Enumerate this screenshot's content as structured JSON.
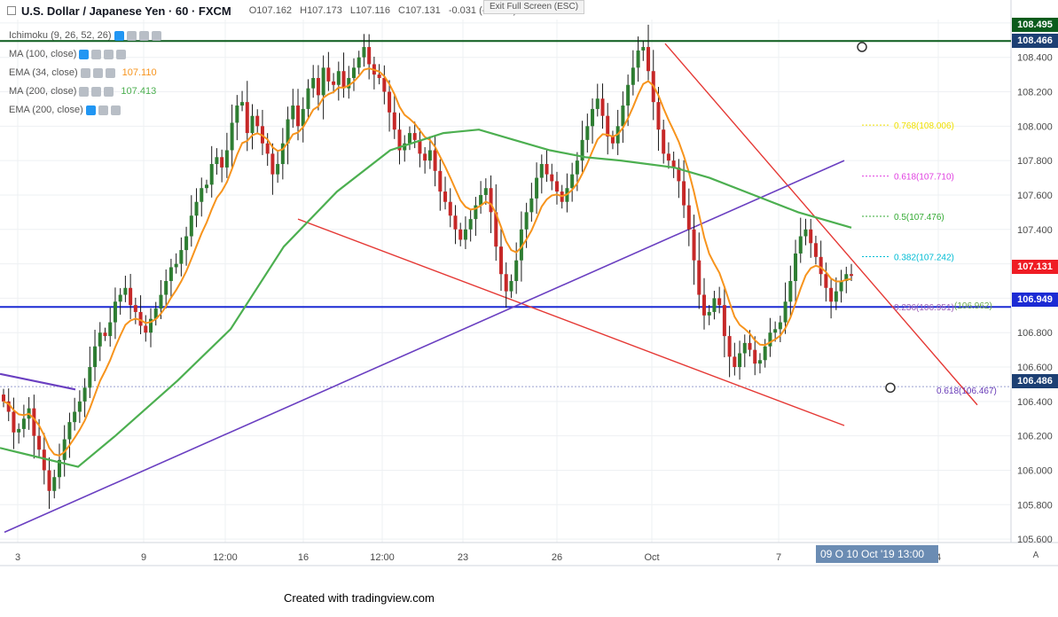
{
  "header": {
    "symbol": "U.S. Dollar / Japanese Yen · 60 · FXCM",
    "open": "O107.162",
    "high": "H107.173",
    "low": "L107.116",
    "close": "C107.131",
    "change": "-0.031 (-0.03%)",
    "exit_fullscreen": "Exit Full Screen (ESC)"
  },
  "indicators": [
    {
      "label": "Ichimoku (9, 26, 52, 26)",
      "value": "",
      "color": "#8a8a8a"
    },
    {
      "label": "MA (100, close)",
      "value": "",
      "color": "#8a8a8a"
    },
    {
      "label": "EMA (34, close)",
      "value": "107.110",
      "color": "#f7941d"
    },
    {
      "label": "MA (200, close)",
      "value": "107.413",
      "color": "#4caf50"
    },
    {
      "label": "EMA (200, close)",
      "value": "",
      "color": "#8a8a8a"
    }
  ],
  "price_labels": [
    {
      "text": "108.495",
      "bg": "#0b5b1c"
    },
    {
      "text": "108.466",
      "bg": "#1c3f73"
    },
    {
      "text": "107.131",
      "bg": "#ef1c24"
    },
    {
      "text": "106.949",
      "bg": "#1c2bd4"
    },
    {
      "text": "106.486",
      "bg": "#1c3f73"
    }
  ],
  "footer": "Created with tradingview.com",
  "time_highlight": "09 O   10 Oct '19   13:00",
  "auto_button": "A",
  "chart_data": {
    "type": "candlestick",
    "x_tick_labels": [
      "3",
      "9",
      "12:00",
      "16",
      "12:00",
      "23",
      "26",
      "Oct",
      "7",
      "4"
    ],
    "y_tick_labels": [
      "108.600",
      "108.400",
      "108.200",
      "108.000",
      "107.800",
      "107.600",
      "107.400",
      "107.200",
      "107.000",
      "106.800",
      "106.600",
      "106.400",
      "106.200",
      "106.000",
      "105.800",
      "105.600"
    ],
    "ylim": [
      105.58,
      108.62
    ],
    "close_series": [
      106.4,
      106.34,
      106.22,
      106.24,
      106.3,
      106.36,
      106.2,
      106.12,
      106.0,
      105.88,
      105.96,
      106.06,
      106.18,
      106.28,
      106.34,
      106.4,
      106.48,
      106.6,
      106.72,
      106.8,
      106.78,
      106.86,
      106.98,
      107.02,
      107.06,
      106.96,
      106.92,
      106.84,
      106.8,
      106.88,
      106.94,
      107.02,
      107.1,
      107.18,
      107.2,
      107.28,
      107.36,
      107.48,
      107.56,
      107.64,
      107.66,
      107.78,
      107.82,
      107.76,
      107.86,
      108.02,
      108.12,
      108.14,
      107.96,
      108.06,
      108.0,
      107.9,
      107.84,
      107.72,
      107.78,
      107.9,
      108.04,
      108.12,
      108.0,
      108.1,
      108.22,
      108.28,
      108.18,
      108.34,
      108.26,
      108.24,
      108.32,
      108.22,
      108.28,
      108.34,
      108.4,
      108.46,
      108.36,
      108.3,
      108.28,
      108.2,
      108.08,
      107.98,
      107.86,
      107.9,
      107.96,
      107.92,
      107.84,
      107.8,
      107.86,
      107.74,
      107.62,
      107.56,
      107.48,
      107.4,
      107.34,
      107.4,
      107.46,
      107.54,
      107.6,
      107.64,
      107.5,
      107.3,
      107.14,
      107.04,
      107.1,
      107.22,
      107.4,
      107.5,
      107.58,
      107.7,
      107.78,
      107.72,
      107.68,
      107.62,
      107.56,
      107.64,
      107.72,
      107.8,
      107.92,
      108.0,
      108.1,
      108.16,
      108.06,
      107.94,
      107.9,
      108.0,
      108.12,
      108.24,
      108.34,
      108.44,
      108.46,
      108.32,
      108.14,
      107.98,
      107.84,
      107.8,
      107.76,
      107.68,
      107.54,
      107.4,
      107.22,
      107.02,
      106.9,
      106.92,
      107.0,
      106.96,
      106.78,
      106.66,
      106.6,
      106.68,
      106.74,
      106.7,
      106.62,
      106.64,
      106.72,
      106.8,
      106.82,
      106.86,
      106.98,
      107.1,
      107.26,
      107.36,
      107.4,
      107.32,
      107.24,
      107.14,
      107.06,
      106.98,
      107.04,
      107.1,
      107.14,
      107.13
    ],
    "ma200_series": [
      [
        0,
        106.13
      ],
      [
        40,
        106.08
      ],
      [
        88,
        106.02
      ],
      [
        130,
        106.2
      ],
      [
        200,
        106.52
      ],
      [
        260,
        106.82
      ],
      [
        320,
        107.3
      ],
      [
        380,
        107.62
      ],
      [
        440,
        107.86
      ],
      [
        500,
        107.96
      ],
      [
        540,
        107.98
      ],
      [
        580,
        107.92
      ],
      [
        620,
        107.86
      ],
      [
        660,
        107.82
      ],
      [
        700,
        107.8
      ],
      [
        760,
        107.76
      ],
      [
        800,
        107.7
      ],
      [
        850,
        107.6
      ],
      [
        900,
        107.5
      ],
      [
        960,
        107.41
      ]
    ],
    "fib_levels": [
      {
        "label": "0.768(108.006)",
        "price": 108.006,
        "color": "#f0e000"
      },
      {
        "label": "0.618(107.710)",
        "price": 107.71,
        "color": "#e040e0"
      },
      {
        "label": "0.5(107.476)",
        "price": 107.476,
        "color": "#33aa33"
      },
      {
        "label": "0.382(107.242)",
        "price": 107.242,
        "color": "#00bcd4"
      },
      {
        "label": "0.236(106.951)",
        "price": 106.951,
        "color": "#9e5fb5"
      },
      {
        "label": "(106.962)",
        "price": 106.962,
        "color": "#6aa84f"
      },
      {
        "label": "0.618(106.467)",
        "price": 106.467,
        "color": "#673ab7"
      }
    ],
    "horizontal_lines": [
      {
        "price": 108.495,
        "color": "#0b5b1c"
      },
      {
        "price": 106.949,
        "color": "#1c2bd4"
      },
      {
        "price": 106.486,
        "color": "#9aa0d0"
      }
    ]
  }
}
